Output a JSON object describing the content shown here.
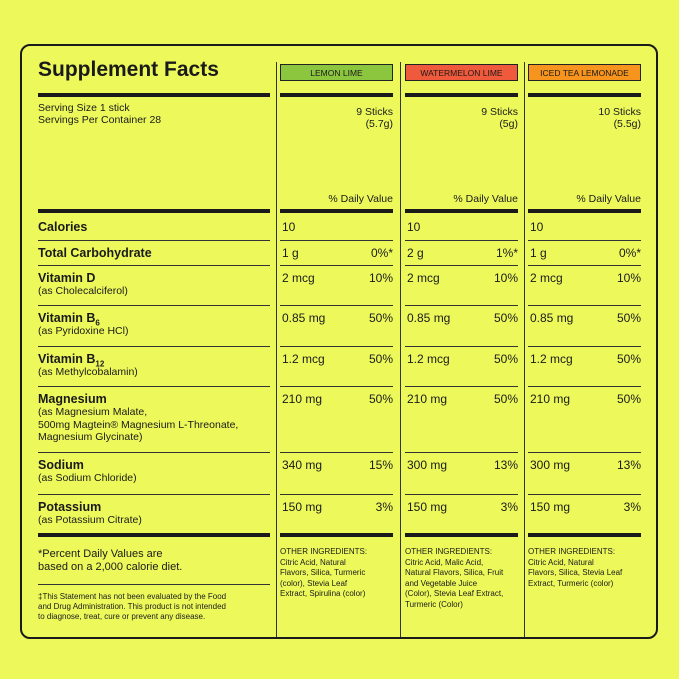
{
  "title": "Supplement Facts",
  "serving": [
    "Serving Size 1 stick",
    "Servings Per Container 28"
  ],
  "daily_value_header": "% Daily Value",
  "products": [
    {
      "name": "LEMON LIME",
      "color": "#8cc63f",
      "sticks": "9 Sticks",
      "weight": "(5.7g)",
      "ingredients": [
        "OTHER INGREDIENTS:",
        "Citric Acid, Natural",
        "Flavors, Silica, Turmeric",
        "(color), Stevia Leaf",
        "Extract, Spirulina (color)"
      ]
    },
    {
      "name": "WATERMELON LIME",
      "color": "#f05a3c",
      "sticks": "9 Sticks",
      "weight": "(5g)",
      "ingredients": [
        "OTHER INGREDIENTS:",
        "Citric Acid, Malic Acid,",
        "Natural Flavors, Silica, Fruit",
        "and Vegetable Juice",
        "(Color), Stevia Leaf Extract,",
        "Turmeric (Color)"
      ]
    },
    {
      "name": "ICED TEA LEMONADE",
      "color": "#f7941d",
      "sticks": "10 Sticks",
      "weight": "(5.5g)",
      "ingredients": [
        "OTHER INGREDIENTS:",
        "Citric Acid, Natural",
        "Flavors, Silica, Stevia Leaf",
        "Extract, Turmeric (color)"
      ]
    }
  ],
  "rows": [
    {
      "label": "Calories",
      "values": [
        [
          "10"
        ],
        [
          "10"
        ],
        [
          "10"
        ]
      ]
    },
    {
      "label": "Total Carbohydrate",
      "values": [
        [
          "1 g",
          "0%*"
        ],
        [
          "2 g",
          "1%*"
        ],
        [
          "1 g",
          "0%*"
        ]
      ]
    },
    {
      "label": "Vitamin D",
      "sub": [
        "(as Cholecalciferol)"
      ],
      "values": [
        [
          "2 mcg",
          "10%"
        ],
        [
          "2 mcg",
          "10%"
        ],
        [
          "2 mcg",
          "10%"
        ]
      ]
    },
    {
      "label": "Vitamin B",
      "subscript": "6",
      "sub": [
        "(as Pyridoxine HCl)"
      ],
      "values": [
        [
          "0.85 mg",
          "50%"
        ],
        [
          "0.85 mg",
          "50%"
        ],
        [
          "0.85 mg",
          "50%"
        ]
      ]
    },
    {
      "label": "Vitamin B",
      "subscript": "12",
      "sub": [
        "(as Methylcobalamin)"
      ],
      "values": [
        [
          "1.2 mcg",
          "50%"
        ],
        [
          "1.2 mcg",
          "50%"
        ],
        [
          "1.2 mcg",
          "50%"
        ]
      ]
    },
    {
      "label": "Magnesium",
      "sub": [
        "(as Magnesium Malate,",
        "500mg Magtein® Magnesium L-Threonate,",
        "Magnesium Glycinate)"
      ],
      "values": [
        [
          "210 mg",
          "50%"
        ],
        [
          "210 mg",
          "50%"
        ],
        [
          "210 mg",
          "50%"
        ]
      ]
    },
    {
      "label": "Sodium",
      "sub": [
        "(as Sodium Chloride)"
      ],
      "values": [
        [
          "340 mg",
          "15%"
        ],
        [
          "300 mg",
          "13%"
        ],
        [
          "300 mg",
          "13%"
        ]
      ]
    },
    {
      "label": "Potassium",
      "sub": [
        "(as Potassium Citrate)"
      ],
      "values": [
        [
          "150 mg",
          "3%"
        ],
        [
          "150 mg",
          "3%"
        ],
        [
          "150 mg",
          "3%"
        ]
      ]
    }
  ],
  "footnote": [
    "*Percent Daily Values are",
    "based on a 2,000 calorie diet."
  ],
  "disclaimer": [
    "‡This Statement has not been evaluated by the Food",
    "and Drug Administration. This product is not intended",
    "to diagnose, treat, cure or prevent any disease."
  ]
}
